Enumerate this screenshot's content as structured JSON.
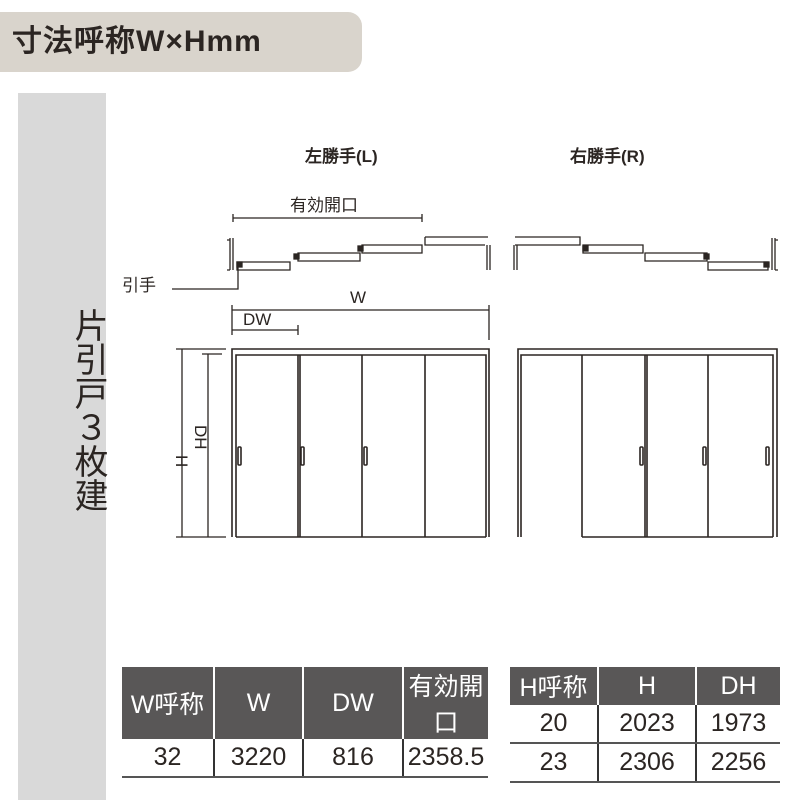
{
  "title": "寸法呼称W×Hmm",
  "side_label": "片引戸３枚建",
  "diagram": {
    "left_title": "左勝手(L)",
    "right_title": "右勝手(R)",
    "opening_label": "有効開口",
    "handle_label": "引手",
    "w_label": "W",
    "dw_label": "DW",
    "h_label": "H",
    "dh_label": "DH"
  },
  "width_table": {
    "headers": [
      "W呼称",
      "W",
      "DW",
      "有効開口"
    ],
    "rows": [
      [
        "32",
        "3220",
        "816",
        "2358.5"
      ]
    ]
  },
  "height_table": {
    "headers": [
      "H呼称",
      "H",
      "DH"
    ],
    "rows": [
      [
        "20",
        "2023",
        "1973"
      ],
      [
        "23",
        "2306",
        "2256"
      ]
    ]
  }
}
